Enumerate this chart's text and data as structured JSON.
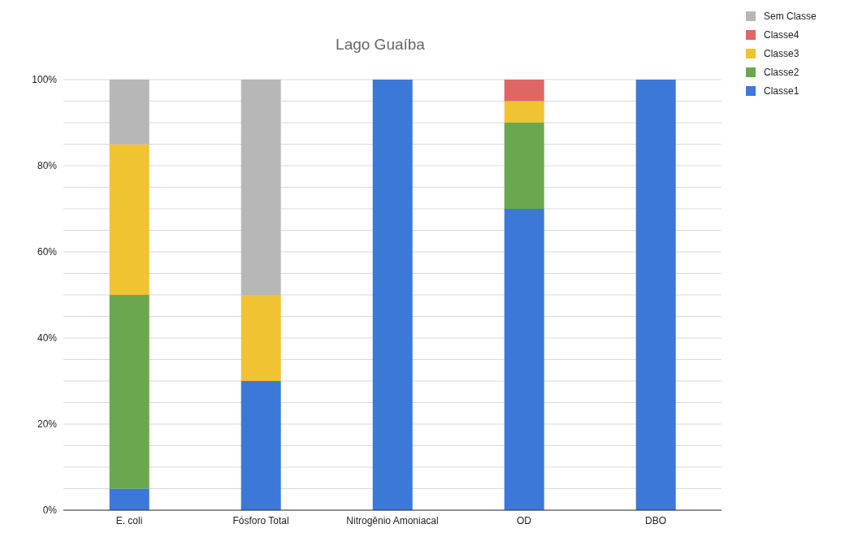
{
  "chart_data": {
    "type": "bar",
    "title": "Lago Guaíba",
    "stacked": true,
    "categories": [
      "E. coli",
      "Fósforo Total",
      "Nitrogênio Amoniacal",
      "OD",
      "DBO"
    ],
    "series": [
      {
        "name": "Classe1",
        "color": "#3c78d8",
        "values": [
          5,
          30,
          100,
          70,
          100
        ]
      },
      {
        "name": "Classe2",
        "color": "#6aa84f",
        "values": [
          45,
          0,
          0,
          20,
          0
        ]
      },
      {
        "name": "Classe3",
        "color": "#f1c232",
        "values": [
          35,
          20,
          0,
          5,
          0
        ]
      },
      {
        "name": "Classe4",
        "color": "#e06666",
        "values": [
          0,
          0,
          0,
          5,
          0
        ]
      },
      {
        "name": "Sem Classe",
        "color": "#b7b7b7",
        "values": [
          15,
          50,
          0,
          0,
          0
        ]
      }
    ],
    "ylim": [
      0,
      100
    ],
    "yticks": [
      {
        "value": 0,
        "label": "0%"
      },
      {
        "value": 5,
        "label": null
      },
      {
        "value": 10,
        "label": null
      },
      {
        "value": 15,
        "label": null
      },
      {
        "value": 20,
        "label": "20%"
      },
      {
        "value": 25,
        "label": null
      },
      {
        "value": 30,
        "label": null
      },
      {
        "value": 35,
        "label": null
      },
      {
        "value": 40,
        "label": "40%"
      },
      {
        "value": 45,
        "label": null
      },
      {
        "value": 50,
        "label": null
      },
      {
        "value": 55,
        "label": null
      },
      {
        "value": 60,
        "label": "60%"
      },
      {
        "value": 65,
        "label": null
      },
      {
        "value": 70,
        "label": null
      },
      {
        "value": 75,
        "label": null
      },
      {
        "value": 80,
        "label": "80%"
      },
      {
        "value": 85,
        "label": null
      },
      {
        "value": 90,
        "label": null
      },
      {
        "value": 95,
        "label": null
      },
      {
        "value": 100,
        "label": "100%"
      }
    ],
    "grid": "y",
    "legend": "right"
  }
}
